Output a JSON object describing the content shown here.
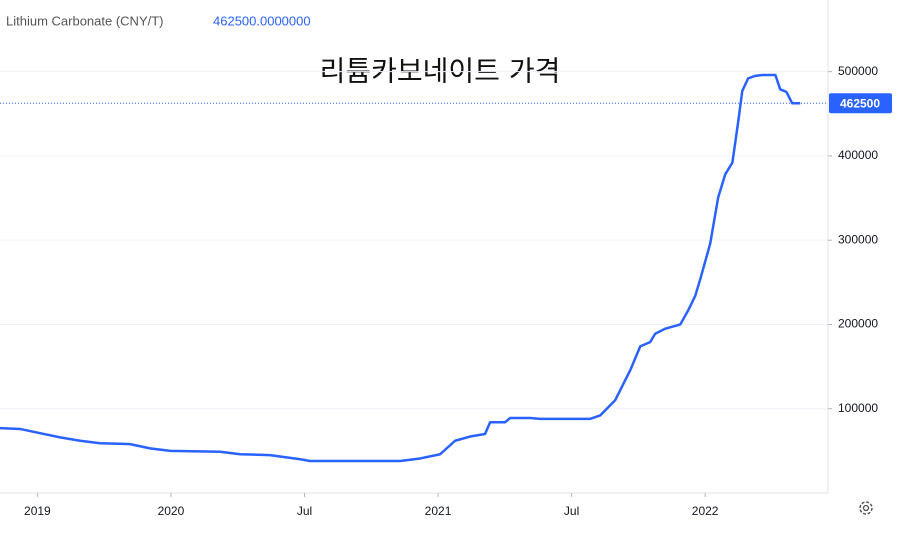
{
  "chart_data": {
    "type": "line",
    "header": "Lithium Carbonate (CNY/T)",
    "last_price_label": "462500.0000000",
    "last_price": 462500,
    "title": "리튬카보네이트 가격",
    "x": [
      2019.36,
      2019.435,
      2019.51,
      2019.585,
      2019.66,
      2019.735,
      2019.847,
      2019.922,
      2019.997,
      2020.184,
      2020.259,
      2020.371,
      2020.484,
      2020.521,
      2020.858,
      2020.933,
      2021.008,
      2021.064,
      2021.12,
      2021.176,
      2021.195,
      2021.251,
      2021.27,
      2021.345,
      2021.382,
      2021.57,
      2021.607,
      2021.663,
      2021.72,
      2021.757,
      2021.794,
      2021.813,
      2021.851,
      2021.907,
      2021.937,
      2021.963,
      2021.982,
      2022.019,
      2022.049,
      2022.075,
      2022.102,
      2022.124,
      2022.139,
      2022.161,
      2022.188,
      2022.214,
      2022.263,
      2022.281,
      2022.304,
      2022.326,
      2022.356
    ],
    "series": [
      {
        "name": "Lithium Carbonate (CNY/T)",
        "color": "#2962ff",
        "values": [
          77000,
          76000,
          71000,
          66000,
          62000,
          59000,
          58000,
          53000,
          50000,
          49000,
          46000,
          45000,
          40000,
          38000,
          38000,
          41000,
          46000,
          62000,
          67000,
          70000,
          84000,
          84000,
          89000,
          89000,
          88000,
          88000,
          92000,
          110000,
          146000,
          174000,
          179000,
          189000,
          195000,
          200000,
          217000,
          234000,
          254000,
          296000,
          351000,
          378000,
          392000,
          441000,
          477000,
          492000,
          495000,
          496000,
          496000,
          479000,
          476000,
          462500,
          462500
        ]
      }
    ],
    "xlim": [
      2019.36,
      2022.46
    ],
    "xticks": [
      {
        "value": 2019.5,
        "label": "2019"
      },
      {
        "value": 2020,
        "label": "2020"
      },
      {
        "value": 2020.5,
        "label": "Jul"
      },
      {
        "value": 2021,
        "label": "2021"
      },
      {
        "value": 2021.5,
        "label": "Jul"
      },
      {
        "value": 2022,
        "label": "2022"
      }
    ],
    "ylim": [
      0,
      585000
    ],
    "yticks": [
      100000,
      200000,
      300000,
      400000,
      500000
    ],
    "grid": true
  }
}
